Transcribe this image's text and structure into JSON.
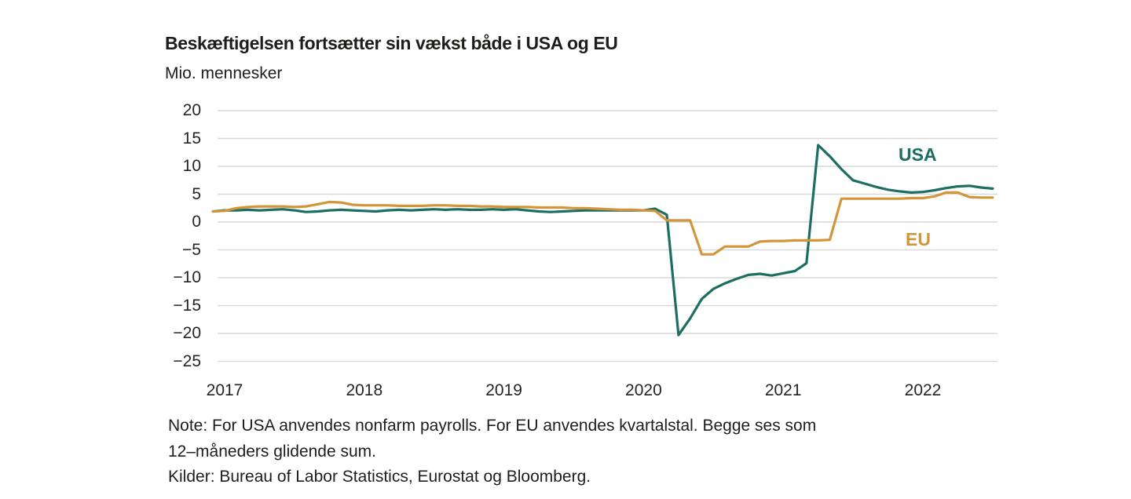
{
  "header": {
    "title": "Beskæftigelsen fortsætter sin vækst både i USA og EU",
    "unit_label": "Mio. mennesker"
  },
  "series_labels": {
    "usa": "USA",
    "eu": "EU"
  },
  "note": {
    "line1": "Note: For USA anvendes nonfarm payrolls. For EU anvendes kvartalstal. Begge ses som",
    "line2": "12–måneders glidende sum.",
    "kilder": "Kilder: Bureau of Labor Statistics, Eurostat og Bloomberg."
  },
  "colors": {
    "usa": "#1b6e61",
    "eu": "#d2953a",
    "gridline": "#d9d9d9",
    "text": "#1d1d1b",
    "background": "#ffffff"
  },
  "chart_data": {
    "type": "line",
    "title": "Beskæftigelsen fortsætter sin vækst både i USA og EU",
    "ylabel": "Mio. mennesker",
    "ylim": [
      -25,
      20
    ],
    "yticks": [
      20,
      15,
      10,
      5,
      0,
      -5,
      -10,
      -15,
      -20,
      -25
    ],
    "ytick_labels": [
      "20",
      "15",
      "10",
      "5",
      "0",
      "−5",
      "−10",
      "−15",
      "−20",
      "−25"
    ],
    "xticks": [
      2017,
      2018,
      2019,
      2020,
      2021,
      2022
    ],
    "x_start": "2016-12",
    "x_end": "2022-07",
    "frequency": "monthly",
    "grid": "horizontal",
    "legend": "inline-labels",
    "series": [
      {
        "name": "USA",
        "color": "#1b6e61",
        "values": [
          1.9,
          2.1,
          2.1,
          2.2,
          2.1,
          2.2,
          2.3,
          2.1,
          1.8,
          1.9,
          2.1,
          2.2,
          2.1,
          2.0,
          1.9,
          2.1,
          2.2,
          2.1,
          2.2,
          2.3,
          2.2,
          2.3,
          2.2,
          2.2,
          2.3,
          2.2,
          2.3,
          2.1,
          1.9,
          1.8,
          1.9,
          2.0,
          2.1,
          2.1,
          2.1,
          2.1,
          2.1,
          2.1,
          2.4,
          1.3,
          -20.3,
          -17.3,
          -13.8,
          -12.0,
          -11.0,
          -10.2,
          -9.5,
          -9.3,
          -9.6,
          -9.2,
          -8.8,
          -7.4,
          13.8,
          11.8,
          9.5,
          7.5,
          6.9,
          6.3,
          5.8,
          5.5,
          5.3,
          5.4,
          5.7,
          6.1,
          6.4,
          6.5,
          6.2,
          6.0
        ]
      },
      {
        "name": "EU",
        "color": "#d2953a",
        "values": [
          1.9,
          2.0,
          2.5,
          2.7,
          2.8,
          2.8,
          2.8,
          2.7,
          2.8,
          3.2,
          3.6,
          3.5,
          3.1,
          3.0,
          3.0,
          3.0,
          2.9,
          2.9,
          2.9,
          3.0,
          3.0,
          2.9,
          2.9,
          2.8,
          2.8,
          2.7,
          2.7,
          2.7,
          2.6,
          2.6,
          2.6,
          2.5,
          2.5,
          2.4,
          2.3,
          2.2,
          2.2,
          2.1,
          2.0,
          0.3,
          0.3,
          0.3,
          -5.8,
          -5.8,
          -4.4,
          -4.4,
          -4.4,
          -3.5,
          -3.4,
          -3.4,
          -3.3,
          -3.3,
          -3.3,
          -3.2,
          4.2,
          4.2,
          4.2,
          4.2,
          4.2,
          4.2,
          4.3,
          4.3,
          4.6,
          5.3,
          5.3,
          4.5,
          4.4,
          4.4
        ]
      }
    ]
  }
}
